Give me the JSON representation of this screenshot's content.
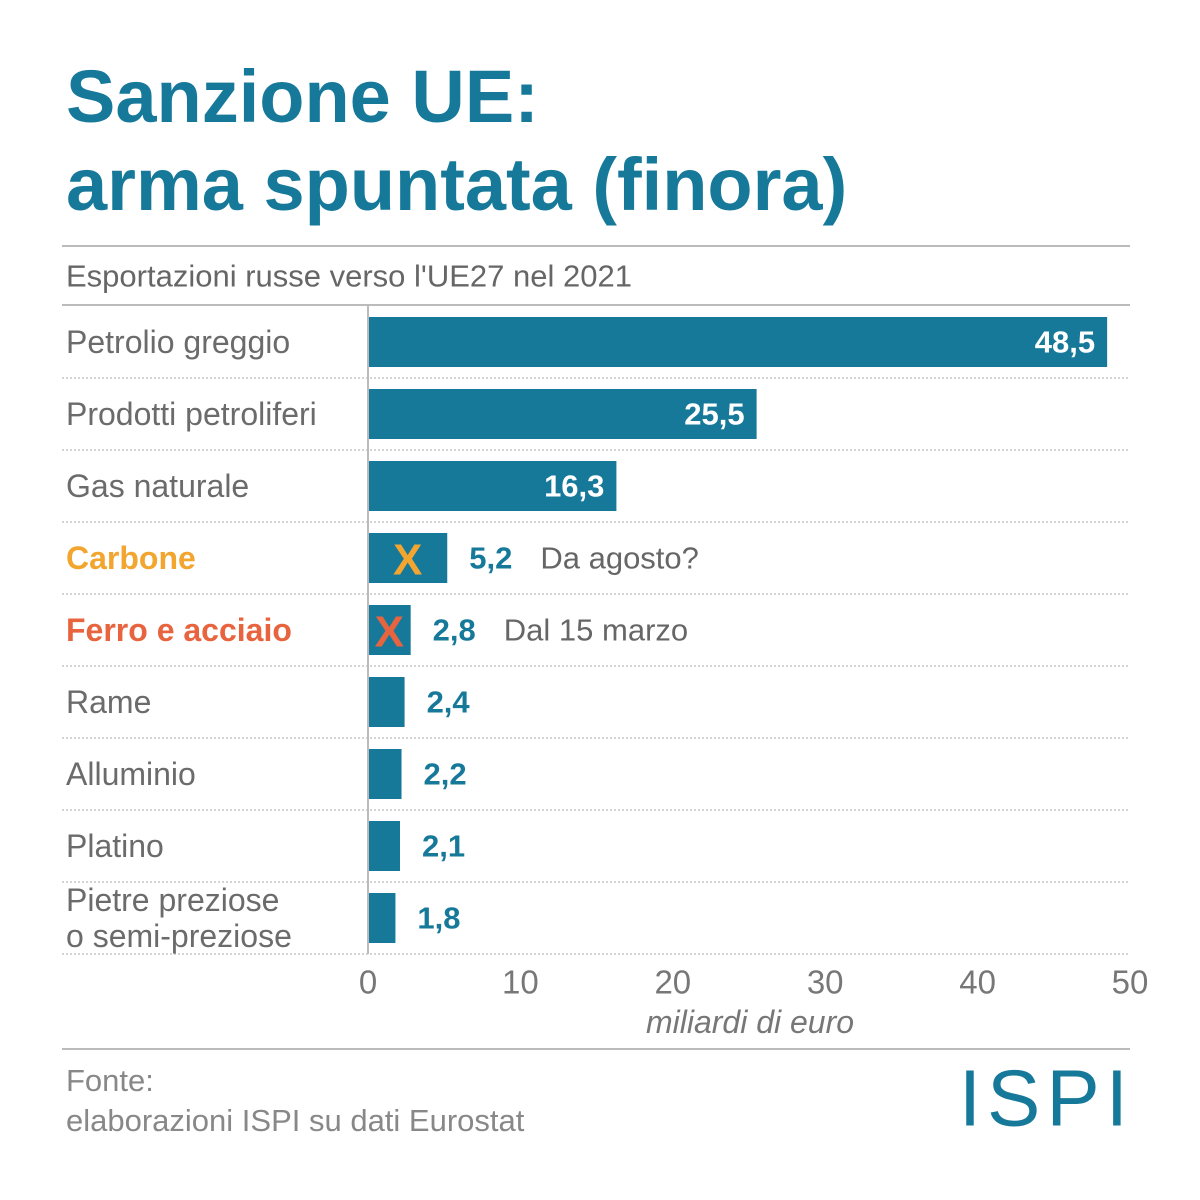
{
  "chart_data": {
    "type": "hbar",
    "title": "Sanzione UE:\narma spuntata (finora)",
    "subtitle": "Esportazioni russe verso l'UE27 nel 2021",
    "categories": [
      "Petrolio greggio",
      "Prodotti petroliferi",
      "Gas naturale",
      "Carbone",
      "Ferro e acciaio",
      "Rame",
      "Alluminio",
      "Platino",
      "Pietre preziose\no semi-preziose"
    ],
    "category_colors": [
      "#6b6b6b",
      "#6b6b6b",
      "#6b6b6b",
      "#f2a52f",
      "#e8643f",
      "#6b6b6b",
      "#6b6b6b",
      "#6b6b6b",
      "#6b6b6b"
    ],
    "values": [
      48.5,
      25.5,
      16.3,
      5.2,
      2.8,
      2.4,
      2.2,
      2.1,
      1.8
    ],
    "value_labels": [
      "48,5",
      "25,5",
      "16,3",
      "5,2",
      "2,8",
      "2,4",
      "2,2",
      "2,1",
      "1,8"
    ],
    "markers": [
      null,
      null,
      null,
      "X",
      "X",
      null,
      null,
      null,
      null
    ],
    "notes": [
      null,
      null,
      null,
      "Da agosto?",
      "Dal 15 marzo",
      null,
      null,
      null,
      null
    ],
    "color": "#17799a",
    "xlim": [
      0,
      50
    ],
    "xticks": [
      0,
      10,
      20,
      30,
      40,
      50
    ],
    "xlabel": "miliardi di euro",
    "source": "Fonte:\nelaborazioni ISPI su dati Eurostat",
    "logo": "ISPI"
  }
}
